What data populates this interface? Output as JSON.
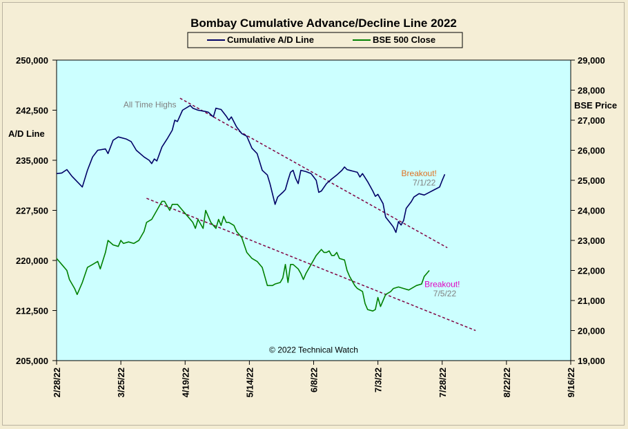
{
  "chart_data": {
    "type": "line",
    "title": "Bombay Cumulative Advance/Decline Line 2022",
    "y_left_label": "A/D Line",
    "y_right_label": "BSE Price",
    "y_left_ticks": [
      "250,000",
      "242,500",
      "235,000",
      "227,500",
      "220,000",
      "212,500",
      "205,000"
    ],
    "y_right_ticks": [
      "29,000",
      "28,000",
      "27,000",
      "26,000",
      "25,000",
      "24,000",
      "23,000",
      "22,000",
      "21,000",
      "20,000",
      "19,000"
    ],
    "y_left_range": [
      205000,
      250000
    ],
    "y_right_range": [
      19000,
      29000
    ],
    "x_ticks": [
      "2/28/22",
      "3/25/22",
      "4/19/22",
      "5/14/22",
      "6/8/22",
      "7/3/22",
      "7/28/22",
      "8/22/22",
      "9/16/22"
    ],
    "x_range_days": [
      0,
      200
    ],
    "plot_background": "#ccffff",
    "legend_position": "top-center",
    "series": [
      {
        "name": "Cumulative A/D Line",
        "axis": "left",
        "color": "#000066",
        "points": [
          [
            0,
            233000
          ],
          [
            2,
            233100
          ],
          [
            4,
            233600
          ],
          [
            6,
            232600
          ],
          [
            8,
            231800
          ],
          [
            10,
            231000
          ],
          [
            12,
            233500
          ],
          [
            14,
            235500
          ],
          [
            16,
            236500
          ],
          [
            19,
            236700
          ],
          [
            20,
            236000
          ],
          [
            22,
            238000
          ],
          [
            24,
            238500
          ],
          [
            27,
            238200
          ],
          [
            29,
            237800
          ],
          [
            31,
            236500
          ],
          [
            34,
            235500
          ],
          [
            36,
            235000
          ],
          [
            37,
            234500
          ],
          [
            38,
            235200
          ],
          [
            39,
            234900
          ],
          [
            41,
            237000
          ],
          [
            43,
            238200
          ],
          [
            45,
            239500
          ],
          [
            46,
            241000
          ],
          [
            47,
            240800
          ],
          [
            49,
            242500
          ],
          [
            52,
            243200
          ],
          [
            53,
            242800
          ],
          [
            55,
            242500
          ],
          [
            58,
            242300
          ],
          [
            59,
            242200
          ],
          [
            61,
            241500
          ],
          [
            62,
            242800
          ],
          [
            63,
            242700
          ],
          [
            64,
            242600
          ],
          [
            66,
            241600
          ],
          [
            67,
            241000
          ],
          [
            68,
            241500
          ],
          [
            70,
            240000
          ],
          [
            72,
            239000
          ],
          [
            74,
            238600
          ],
          [
            76,
            236800
          ],
          [
            78,
            236000
          ],
          [
            80,
            233500
          ],
          [
            82,
            232800
          ],
          [
            83,
            231500
          ],
          [
            85,
            228400
          ],
          [
            86,
            229500
          ],
          [
            88,
            230200
          ],
          [
            89,
            230600
          ],
          [
            90,
            232000
          ],
          [
            91,
            233200
          ],
          [
            92,
            233500
          ],
          [
            93,
            232300
          ],
          [
            94,
            231500
          ],
          [
            95,
            233500
          ],
          [
            97,
            233300
          ],
          [
            99,
            233000
          ],
          [
            101,
            232000
          ],
          [
            102,
            230200
          ],
          [
            103,
            230400
          ],
          [
            105,
            231500
          ],
          [
            107,
            232200
          ],
          [
            109,
            232800
          ],
          [
            111,
            233500
          ],
          [
            112,
            234000
          ],
          [
            113,
            233600
          ],
          [
            115,
            233400
          ],
          [
            117,
            233200
          ],
          [
            118,
            232500
          ],
          [
            119,
            233000
          ],
          [
            121,
            231800
          ],
          [
            123,
            230400
          ],
          [
            124,
            229600
          ],
          [
            125,
            229900
          ],
          [
            127,
            228500
          ],
          [
            128,
            226500
          ],
          [
            130,
            225500
          ],
          [
            131,
            225000
          ],
          [
            132,
            224200
          ],
          [
            133,
            225800
          ],
          [
            134,
            225300
          ],
          [
            135,
            226000
          ],
          [
            136,
            227800
          ],
          [
            138,
            228800
          ],
          [
            139,
            229500
          ],
          [
            141,
            230000
          ],
          [
            143,
            229800
          ],
          [
            145,
            230200
          ],
          [
            147,
            230600
          ],
          [
            149,
            231000
          ],
          [
            150,
            232000
          ],
          [
            151,
            232900
          ]
        ]
      },
      {
        "name": "BSE 500 Close",
        "axis": "right",
        "color": "#008000",
        "points": [
          [
            0,
            22400
          ],
          [
            2,
            22200
          ],
          [
            4,
            22000
          ],
          [
            5,
            21700
          ],
          [
            7,
            21400
          ],
          [
            8,
            21200
          ],
          [
            10,
            21600
          ],
          [
            12,
            22100
          ],
          [
            14,
            22200
          ],
          [
            16,
            22300
          ],
          [
            17,
            22050
          ],
          [
            19,
            22600
          ],
          [
            20,
            23000
          ],
          [
            22,
            22850
          ],
          [
            24,
            22800
          ],
          [
            25,
            23000
          ],
          [
            26,
            22900
          ],
          [
            28,
            22950
          ],
          [
            30,
            22900
          ],
          [
            32,
            23000
          ],
          [
            34,
            23300
          ],
          [
            35,
            23600
          ],
          [
            37,
            23700
          ],
          [
            39,
            24000
          ],
          [
            41,
            24300
          ],
          [
            42,
            24300
          ],
          [
            44,
            24000
          ],
          [
            45,
            24200
          ],
          [
            47,
            24200
          ],
          [
            49,
            24000
          ],
          [
            51,
            23800
          ],
          [
            53,
            23600
          ],
          [
            54,
            23400
          ],
          [
            55,
            23700
          ],
          [
            57,
            23400
          ],
          [
            58,
            24000
          ],
          [
            60,
            23600
          ],
          [
            61,
            23500
          ],
          [
            62,
            23400
          ],
          [
            63,
            23700
          ],
          [
            64,
            23500
          ],
          [
            65,
            23800
          ],
          [
            66,
            23600
          ],
          [
            67,
            23600
          ],
          [
            69,
            23500
          ],
          [
            70,
            23300
          ],
          [
            72,
            23100
          ],
          [
            74,
            22600
          ],
          [
            76,
            22400
          ],
          [
            78,
            22300
          ],
          [
            80,
            22100
          ],
          [
            81,
            21800
          ],
          [
            82,
            21500
          ],
          [
            84,
            21500
          ],
          [
            85,
            21550
          ],
          [
            87,
            21600
          ],
          [
            88,
            21750
          ],
          [
            89,
            22200
          ],
          [
            90,
            21600
          ],
          [
            91,
            22200
          ],
          [
            92,
            22200
          ],
          [
            94,
            22050
          ],
          [
            95,
            21900
          ],
          [
            96,
            21700
          ],
          [
            97,
            21900
          ],
          [
            99,
            22200
          ],
          [
            101,
            22500
          ],
          [
            103,
            22700
          ],
          [
            104,
            22600
          ],
          [
            105,
            22600
          ],
          [
            106,
            22650
          ],
          [
            107,
            22500
          ],
          [
            108,
            22500
          ],
          [
            109,
            22600
          ],
          [
            110,
            22400
          ],
          [
            112,
            22350
          ],
          [
            113,
            22000
          ],
          [
            114,
            21800
          ],
          [
            116,
            21500
          ],
          [
            117,
            21400
          ],
          [
            119,
            21300
          ],
          [
            120,
            20900
          ],
          [
            121,
            20700
          ],
          [
            123,
            20650
          ],
          [
            124,
            20700
          ],
          [
            125,
            21100
          ],
          [
            126,
            20800
          ],
          [
            127,
            21000
          ],
          [
            128,
            21200
          ],
          [
            130,
            21300
          ],
          [
            131,
            21400
          ],
          [
            133,
            21450
          ],
          [
            135,
            21400
          ],
          [
            137,
            21350
          ],
          [
            139,
            21450
          ],
          [
            140,
            21500
          ],
          [
            142,
            21550
          ],
          [
            143,
            21800
          ],
          [
            144,
            21900
          ],
          [
            145,
            22000
          ]
        ]
      }
    ],
    "trendlines": [
      {
        "axis": "left",
        "from": [
          48,
          244300
        ],
        "to": [
          152,
          221900
        ],
        "color": "#800040"
      },
      {
        "axis": "right",
        "from": [
          35,
          24400
        ],
        "to": [
          163,
          20000
        ],
        "color": "#800040"
      }
    ],
    "annotations": [
      {
        "text": "All Time Highs",
        "x": 26,
        "y_left": 242900,
        "color": "#808080",
        "anchor": "start"
      },
      {
        "text": "Breakout!",
        "x": 141,
        "y_left": 232600,
        "color": "#e07020",
        "anchor": "middle"
      },
      {
        "text": "7/1/22",
        "x": 143,
        "y_left": 231200,
        "color": "#808080",
        "anchor": "middle"
      },
      {
        "text": "Breakout!",
        "x": 150,
        "y_left": 216000,
        "color": "#e000c0",
        "anchor": "middle"
      },
      {
        "text": "7/5/22",
        "x": 151,
        "y_left": 214600,
        "color": "#808080",
        "anchor": "middle"
      },
      {
        "text": "© 2022 Technical Watch",
        "x": 100,
        "y_left": 206200,
        "color": "#000000",
        "anchor": "middle"
      }
    ]
  }
}
